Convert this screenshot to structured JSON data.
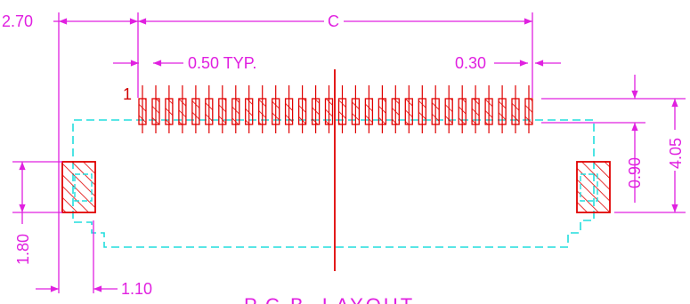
{
  "colors": {
    "dimension": "#e020e0",
    "pads": "#e00000",
    "outline": "#22dddd",
    "background": "#ffffff"
  },
  "pin_label": "1",
  "dimensions": {
    "left_offset": "2.70",
    "overall_width": "C",
    "pitch": "0.50 TYP.",
    "pad_width": "0.30",
    "pad_length": "0.90",
    "overall_height": "4.05",
    "side_pad_height": "1.80",
    "side_pad_offset": "1.10"
  },
  "title": "P.C.B. LAYOUT",
  "pad_count": 30
}
